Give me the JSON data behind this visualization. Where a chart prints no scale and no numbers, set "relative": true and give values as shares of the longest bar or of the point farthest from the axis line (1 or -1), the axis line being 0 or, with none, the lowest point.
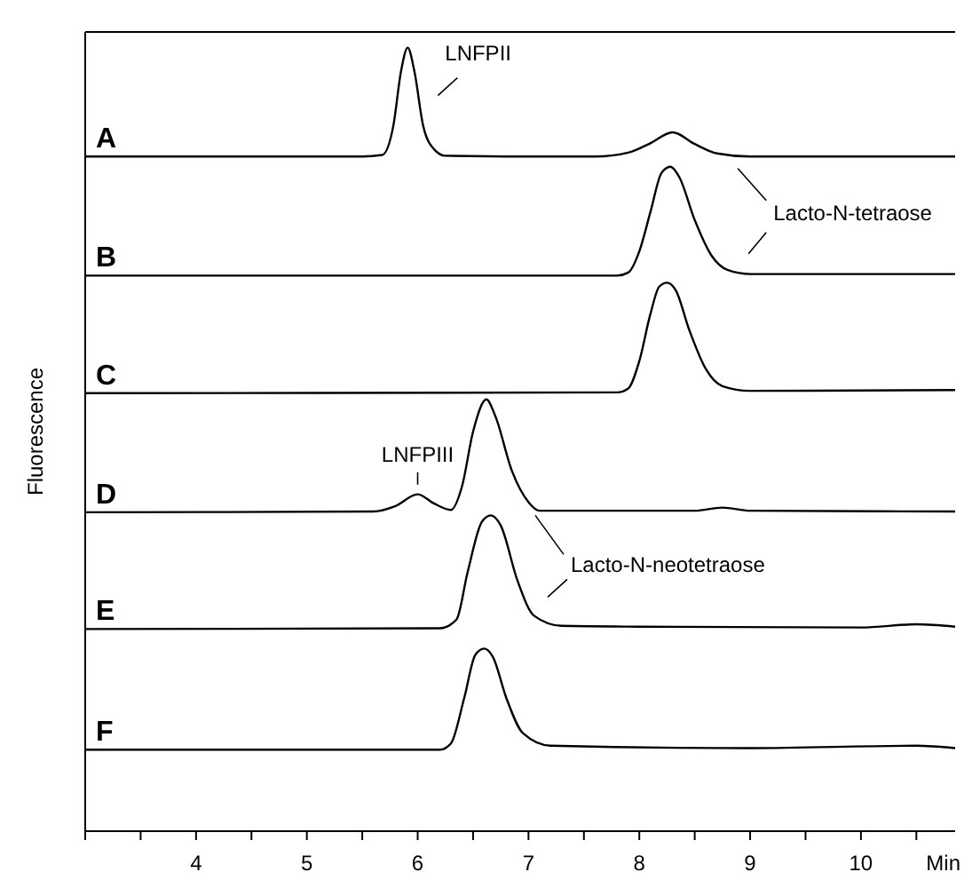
{
  "chart_data": {
    "type": "line",
    "relative": true,
    "xlabel": "Min",
    "ylabel": "Fluorescence",
    "xlim": [
      3,
      10.85
    ],
    "xticks": [
      {
        "value": 3,
        "label": null
      },
      {
        "value": 3.5,
        "label": null
      },
      4,
      {
        "value": 4.5,
        "label": null
      },
      5,
      {
        "value": 5.5,
        "label": null
      },
      6,
      {
        "value": 6.5,
        "label": null
      },
      7,
      {
        "value": 7.5,
        "label": null
      },
      8,
      {
        "value": 8.5,
        "label": null
      },
      9,
      {
        "value": 9.5,
        "label": null
      },
      10,
      {
        "value": 10.5,
        "label": null
      }
    ],
    "grid": false,
    "legend": false,
    "marker": "none",
    "line_style": "solid",
    "series": [
      {
        "name": "A",
        "color": "#000000",
        "x": [
          3,
          5.5,
          5.68,
          5.78,
          5.85,
          5.91,
          5.97,
          6.05,
          6.15,
          6.25,
          7,
          7.6,
          7.9,
          8.1,
          8.3,
          8.5,
          8.7,
          9,
          10.85
        ],
        "values": [
          0.861,
          0.861,
          0.863,
          0.9,
          0.97,
          1.0,
          0.97,
          0.9,
          0.87,
          0.862,
          0.861,
          0.861,
          0.866,
          0.878,
          0.892,
          0.877,
          0.865,
          0.861,
          0.861
        ]
      },
      {
        "name": "B",
        "color": "#000000",
        "x": [
          3,
          7.8,
          7.9,
          8.0,
          8.1,
          8.2,
          8.28,
          8.36,
          8.5,
          8.65,
          8.8,
          9.0,
          10.85
        ],
        "values": [
          0.709,
          0.709,
          0.713,
          0.74,
          0.79,
          0.84,
          0.848,
          0.835,
          0.78,
          0.735,
          0.716,
          0.711,
          0.711
        ]
      },
      {
        "name": "C",
        "color": "#000000",
        "x": [
          3,
          7.8,
          7.9,
          8.0,
          8.1,
          8.18,
          8.25,
          8.33,
          8.45,
          8.6,
          8.75,
          9.0,
          10.85
        ],
        "values": [
          0.559,
          0.56,
          0.565,
          0.6,
          0.66,
          0.695,
          0.7,
          0.69,
          0.64,
          0.59,
          0.568,
          0.562,
          0.563
        ]
      },
      {
        "name": "D",
        "color": "#000000",
        "x": [
          3,
          5.6,
          5.8,
          6.0,
          6.15,
          6.3,
          6.4,
          6.5,
          6.62,
          6.7,
          6.85,
          7.0,
          7.1,
          8.5,
          8.75,
          9.0,
          10.85
        ],
        "values": [
          0.407,
          0.408,
          0.415,
          0.43,
          0.418,
          0.41,
          0.44,
          0.51,
          0.551,
          0.53,
          0.46,
          0.42,
          0.409,
          0.409,
          0.413,
          0.409,
          0.408
        ]
      },
      {
        "name": "E",
        "color": "#000000",
        "x": [
          3,
          6.2,
          6.35,
          6.45,
          6.58,
          6.66,
          6.75,
          6.9,
          7.05,
          7.3,
          8,
          10,
          10.5,
          10.85
        ],
        "values": [
          0.258,
          0.259,
          0.27,
          0.33,
          0.395,
          0.403,
          0.39,
          0.32,
          0.275,
          0.262,
          0.261,
          0.26,
          0.264,
          0.261
        ]
      },
      {
        "name": "F",
        "color": "#000000",
        "x": [
          3,
          6.2,
          6.3,
          6.42,
          6.52,
          6.6,
          6.68,
          6.8,
          6.95,
          7.2,
          9,
          10.5,
          10.85
        ],
        "values": [
          0.104,
          0.104,
          0.112,
          0.17,
          0.225,
          0.233,
          0.222,
          0.17,
          0.125,
          0.109,
          0.106,
          0.109,
          0.106
        ]
      }
    ],
    "annotations": [
      {
        "text": "LNFPII",
        "x": 5.91,
        "y": 1.0
      },
      "Lacto-N-tetraose",
      {
        "text": "LNFPIII",
        "x": 6.0,
        "y": 0.44
      },
      "Lacto-N-neotetraose"
    ]
  }
}
